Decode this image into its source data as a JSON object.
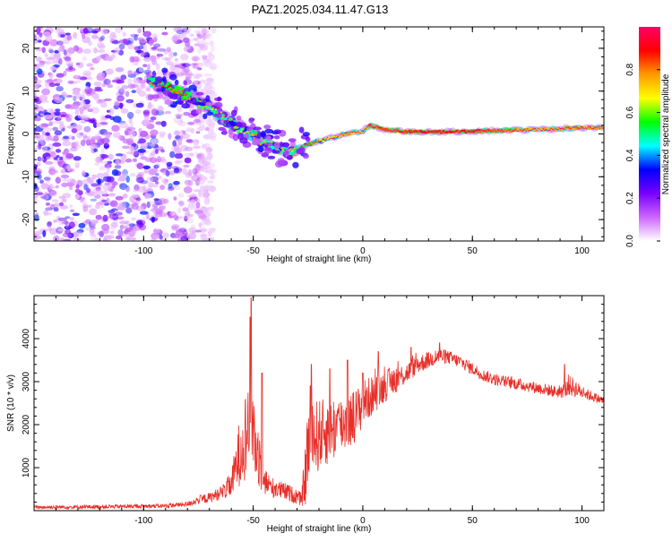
{
  "title": "PAZ1.2025.034.11.47.G13",
  "chart_data": [
    {
      "type": "heatmap",
      "xlabel": "Height of straight line (km)",
      "ylabel": "Frequency (Hz)",
      "xlim": [
        -150,
        110
      ],
      "ylim": [
        -25,
        25
      ],
      "x_ticks": [
        -100,
        -50,
        0,
        50,
        100
      ],
      "y_ticks": [
        -20,
        -10,
        0,
        10,
        20
      ],
      "colorbar": {
        "label": "Normalized spectral amplitude",
        "range": [
          0,
          1
        ],
        "ticks": [
          "0.0",
          "0.2",
          "0.4",
          "0.6",
          "0.8"
        ],
        "colors": [
          "#ffffff",
          "#cc66ff",
          "#7700ff",
          "#0000ff",
          "#00ffff",
          "#00ff00",
          "#ffff00",
          "#ff9900",
          "#ff0000",
          "#ff0066"
        ]
      },
      "ridge": {
        "x": [
          -97,
          -90,
          -80,
          -70,
          -62,
          -55,
          -48,
          -40,
          -35,
          -32,
          -28,
          -22,
          -15,
          -8,
          0,
          3,
          10,
          20,
          40,
          60,
          80,
          100,
          110
        ],
        "frequency": [
          12,
          11,
          9,
          6,
          3,
          1,
          -1,
          -3,
          -4,
          -4.5,
          -3,
          -2,
          -1,
          0,
          0.5,
          2,
          1,
          0.5,
          0.5,
          0.8,
          1,
          1.5,
          1.5
        ],
        "amplitude": [
          0.35,
          0.45,
          0.4,
          0.3,
          0.35,
          0.3,
          0.35,
          0.3,
          0.35,
          0.3,
          0.35,
          0.5,
          0.6,
          0.7,
          0.6,
          0.85,
          0.8,
          0.85,
          0.9,
          0.8,
          0.7,
          0.75,
          0.7
        ]
      }
    },
    {
      "type": "line",
      "xlabel": "Height of straight line (km)",
      "ylabel": "SNR (10 * v/v)",
      "xlim": [
        -150,
        110
      ],
      "ylim": [
        0,
        5000
      ],
      "x_ticks": [
        -100,
        -50,
        0,
        50,
        100
      ],
      "y_ticks": [
        1000,
        2000,
        3000,
        4000
      ],
      "color": "#e8302a",
      "envelope": {
        "x": [
          -150,
          -120,
          -90,
          -80,
          -75,
          -70,
          -65,
          -60,
          -57,
          -55,
          -53,
          -51,
          -49,
          -47,
          -45,
          -42,
          -38,
          -34,
          -30,
          -28,
          -26,
          -25,
          -24,
          -22,
          -18,
          -14,
          -10,
          -6,
          -2,
          0,
          5,
          10,
          15,
          20,
          25,
          30,
          35,
          40,
          45,
          50,
          55,
          60,
          70,
          80,
          90,
          95,
          100,
          105,
          110
        ],
        "mean": [
          80,
          90,
          110,
          150,
          250,
          300,
          400,
          600,
          1200,
          1600,
          1800,
          2500,
          1500,
          1200,
          700,
          550,
          480,
          420,
          320,
          250,
          900,
          1600,
          1400,
          1700,
          1800,
          1900,
          2000,
          2100,
          2300,
          2500,
          2700,
          2900,
          3050,
          3200,
          3400,
          3500,
          3600,
          3550,
          3450,
          3300,
          3150,
          3050,
          2950,
          2850,
          2750,
          2900,
          2750,
          2650,
          2550
        ],
        "spread": [
          40,
          45,
          50,
          60,
          100,
          120,
          150,
          300,
          700,
          900,
          1100,
          1400,
          900,
          700,
          350,
          250,
          220,
          200,
          180,
          150,
          800,
          1100,
          900,
          900,
          800,
          800,
          700,
          650,
          600,
          550,
          450,
          380,
          320,
          250,
          220,
          200,
          180,
          160,
          150,
          150,
          140,
          140,
          140,
          140,
          140,
          250,
          140,
          120,
          100
        ]
      },
      "peaks": [
        {
          "x": -51,
          "y": 4950
        },
        {
          "x": -51.5,
          "y": 4500
        },
        {
          "x": -46,
          "y": 3200
        },
        {
          "x": -23.5,
          "y": 3400
        },
        {
          "x": -24,
          "y": 2900
        },
        {
          "x": -15,
          "y": 3300
        },
        {
          "x": -7,
          "y": 3500
        },
        {
          "x": 0,
          "y": 3200
        },
        {
          "x": 7,
          "y": 3700
        },
        {
          "x": 22,
          "y": 3800
        },
        {
          "x": 35,
          "y": 3900
        },
        {
          "x": 92,
          "y": 3400
        }
      ]
    }
  ]
}
